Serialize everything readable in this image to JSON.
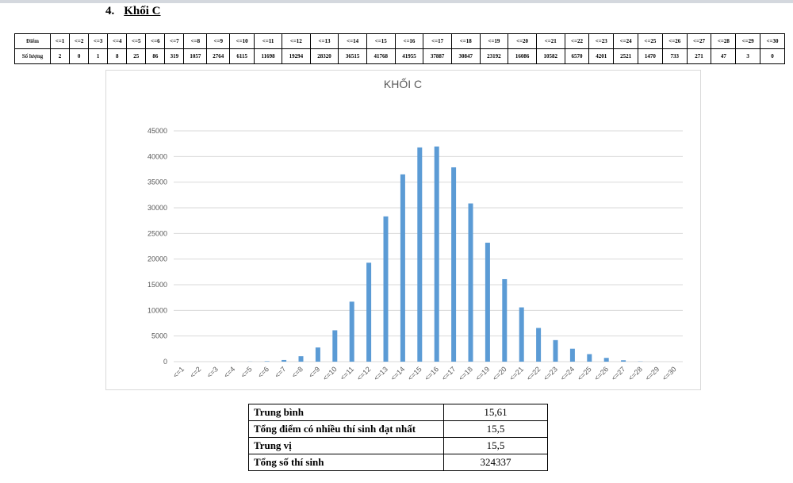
{
  "heading": {
    "number": "4.",
    "title": "Khối C"
  },
  "table": {
    "header": [
      "Điểm",
      "<=1",
      "<=2",
      "<=3",
      "<=4",
      "<=5",
      "<=6",
      "<=7",
      "<=8",
      "<=9",
      "<=10",
      "<=11",
      "<=12",
      "<=13",
      "<=14",
      "<=15",
      "<=16",
      "<=17",
      "<=18",
      "<=19",
      "<=20",
      "<=21",
      "<=22",
      "<=23",
      "<=24",
      "<=25",
      "<=26",
      "<=27",
      "<=28",
      "<=29",
      "<=30"
    ],
    "row": [
      "Số lượng",
      2,
      0,
      1,
      8,
      25,
      86,
      319,
      1057,
      2764,
      6115,
      11698,
      19294,
      28320,
      36515,
      41768,
      41955,
      37887,
      30847,
      23192,
      16086,
      10582,
      6570,
      4201,
      2521,
      1470,
      733,
      271,
      47,
      3,
      0
    ]
  },
  "chart_data": {
    "type": "bar",
    "title": "KHỐI C",
    "categories": [
      "<=1",
      "<=2",
      "<=3",
      "<=4",
      "<=5",
      "<=6",
      "<=7",
      "<=8",
      "<=9",
      "<=10",
      "<=11",
      "<=12",
      "<=13",
      "<=14",
      "<=15",
      "<=16",
      "<=17",
      "<=18",
      "<=19",
      "<=20",
      "<=21",
      "<=22",
      "<=23",
      "<=24",
      "<=25",
      "<=26",
      "<=27",
      "<=28",
      "<=29",
      "<=30"
    ],
    "values": [
      2,
      0,
      1,
      8,
      25,
      86,
      319,
      1057,
      2764,
      6115,
      11698,
      19294,
      28320,
      36515,
      41768,
      41955,
      37887,
      30847,
      23192,
      16086,
      10582,
      6570,
      4201,
      2521,
      1470,
      733,
      271,
      47,
      3,
      0
    ],
    "color": "#5b9bd5",
    "ylim": [
      0,
      45000
    ],
    "yticks": [
      0,
      5000,
      10000,
      15000,
      20000,
      25000,
      30000,
      35000,
      40000,
      45000
    ],
    "grid": true
  },
  "summary": {
    "rows": [
      [
        "Trung bình",
        "15,61"
      ],
      [
        "Tổng điểm có nhiều thí sinh đạt nhất",
        "15,5"
      ],
      [
        "Trung vị",
        "15,5"
      ],
      [
        "Tổng số thí sinh",
        324337
      ]
    ]
  }
}
